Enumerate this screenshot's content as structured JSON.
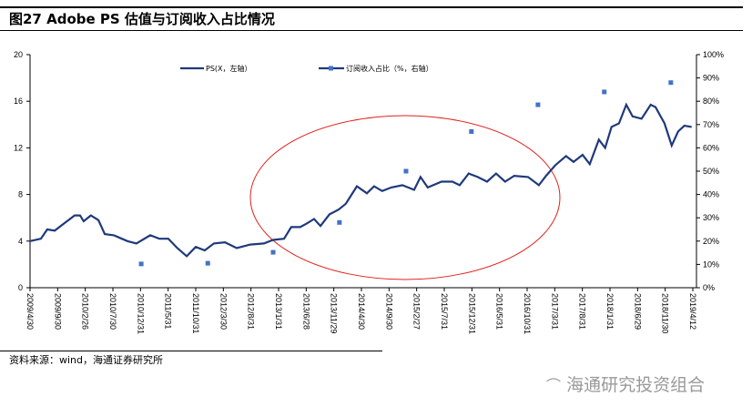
{
  "title": "图27 Adobe PS 估值与订阅收入占比情况",
  "source": "资料来源：wind，海通证券研究所",
  "watermark": "海通研究投资组合",
  "chart_data": {
    "type": "line",
    "title": "图27 Adobe PS 估值与订阅收入占比情况",
    "categories": [
      "2009/4/30",
      "2009/9/30",
      "2010/2/26",
      "2010/7/30",
      "2010/12/31",
      "2011/5/31",
      "2011/10/31",
      "2012/3/30",
      "2012/8/31",
      "2013/1/31",
      "2013/6/28",
      "2013/11/29",
      "2014/4/30",
      "2014/9/30",
      "2015/2/27",
      "2015/7/31",
      "2015/12/31",
      "2016/5/31",
      "2016/10/31",
      "2017/3/31",
      "2017/8/31",
      "2018/1/31",
      "2018/6/29",
      "2018/11/30",
      "2019/4/12"
    ],
    "y_left": {
      "ylim": [
        0,
        20
      ],
      "ticks": [
        "0",
        "4",
        "8",
        "12",
        "16",
        "20"
      ],
      "values": [
        0,
        4,
        8,
        12,
        16,
        20
      ]
    },
    "y_right": {
      "ylim": [
        0,
        100
      ],
      "ticks": [
        "0%",
        "10%",
        "20%",
        "30%",
        "40%",
        "50%",
        "60%",
        "70%",
        "80%",
        "90%",
        "100%"
      ],
      "values": [
        0,
        10,
        20,
        30,
        40,
        50,
        60,
        70,
        80,
        90,
        100
      ]
    },
    "series": [
      {
        "name": "PS(X，左轴）",
        "type": "line",
        "color": "#1f3a7a",
        "axis": "left",
        "points": [
          [
            0,
            4.0
          ],
          [
            0.36,
            4.2
          ],
          [
            0.57,
            5.0
          ],
          [
            0.82,
            4.9
          ],
          [
            1.12,
            5.5
          ],
          [
            1.48,
            6.2
          ],
          [
            1.66,
            6.2
          ],
          [
            1.78,
            5.7
          ],
          [
            2.02,
            6.2
          ],
          [
            2.27,
            5.8
          ],
          [
            2.48,
            4.6
          ],
          [
            2.78,
            4.5
          ],
          [
            3.23,
            4.0
          ],
          [
            3.53,
            3.8
          ],
          [
            3.99,
            4.5
          ],
          [
            4.29,
            4.2
          ],
          [
            4.59,
            4.2
          ],
          [
            4.89,
            3.4
          ],
          [
            5.2,
            2.7
          ],
          [
            5.5,
            3.5
          ],
          [
            5.8,
            3.2
          ],
          [
            6.1,
            3.8
          ],
          [
            6.47,
            3.9
          ],
          [
            6.86,
            3.4
          ],
          [
            7.31,
            3.7
          ],
          [
            7.76,
            3.8
          ],
          [
            8.07,
            4.1
          ],
          [
            8.43,
            4.2
          ],
          [
            8.67,
            5.2
          ],
          [
            8.97,
            5.2
          ],
          [
            9.18,
            5.5
          ],
          [
            9.43,
            5.9
          ],
          [
            9.64,
            5.3
          ],
          [
            9.94,
            6.3
          ],
          [
            10.24,
            6.7
          ],
          [
            10.48,
            7.2
          ],
          [
            10.85,
            8.7
          ],
          [
            11.18,
            8.1
          ],
          [
            11.42,
            8.7
          ],
          [
            11.69,
            8.3
          ],
          [
            11.99,
            8.6
          ],
          [
            12.36,
            8.8
          ],
          [
            12.75,
            8.4
          ],
          [
            12.96,
            9.5
          ],
          [
            13.2,
            8.6
          ],
          [
            13.66,
            9.1
          ],
          [
            14.02,
            9.1
          ],
          [
            14.26,
            8.8
          ],
          [
            14.56,
            9.8
          ],
          [
            14.86,
            9.5
          ],
          [
            15.17,
            9.1
          ],
          [
            15.47,
            9.8
          ],
          [
            15.77,
            9.1
          ],
          [
            16.07,
            9.6
          ],
          [
            16.53,
            9.5
          ],
          [
            16.89,
            8.8
          ],
          [
            17.13,
            9.6
          ],
          [
            17.43,
            10.5
          ],
          [
            17.79,
            11.3
          ],
          [
            18.04,
            10.8
          ],
          [
            18.34,
            11.4
          ],
          [
            18.58,
            10.6
          ],
          [
            18.88,
            12.7
          ],
          [
            19.09,
            12.0
          ],
          [
            19.3,
            13.8
          ],
          [
            19.55,
            14.1
          ],
          [
            19.79,
            15.7
          ],
          [
            20.0,
            14.7
          ],
          [
            20.3,
            14.5
          ],
          [
            20.6,
            15.7
          ],
          [
            20.76,
            15.5
          ],
          [
            21.06,
            14.1
          ],
          [
            21.3,
            12.2
          ],
          [
            21.51,
            13.4
          ],
          [
            21.72,
            13.9
          ],
          [
            21.96,
            13.8
          ]
        ]
      },
      {
        "name": "订阅收入占比（%，右轴）",
        "type": "scatter",
        "color": "#4472c4",
        "axis": "right",
        "points": [
          [
            3.69,
            10.2
          ],
          [
            5.9,
            10.5
          ],
          [
            8.07,
            15.2
          ],
          [
            10.27,
            28
          ],
          [
            12.48,
            50
          ],
          [
            14.65,
            67
          ],
          [
            16.86,
            78.5
          ],
          [
            19.06,
            84
          ],
          [
            21.27,
            88
          ]
        ]
      }
    ],
    "legend": "top-center",
    "grid": false,
    "annotation": "red ellipse highlighting 2013–2016"
  }
}
